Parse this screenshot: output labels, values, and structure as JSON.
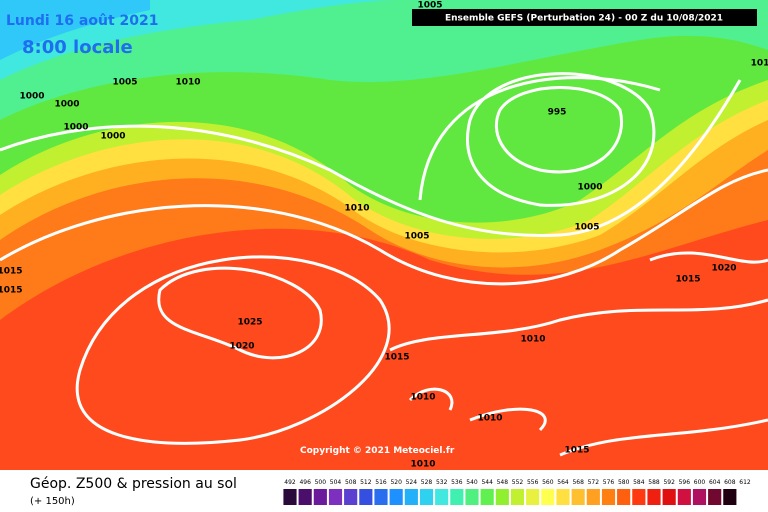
{
  "header": {
    "date": "Lundi 16 août 2021",
    "time": "8:00 locale",
    "model": "Ensemble GEFS  (Perturbation 24)  -  00 Z du 10/08/2021"
  },
  "isobar_labels": [
    "1005",
    "1005",
    "1010",
    "1000",
    "1000",
    "1000",
    "1000",
    "995",
    "1000",
    "1010",
    "1005",
    "1005",
    "1015",
    "1015",
    "1020",
    "1015",
    "1025",
    "1020",
    "1010",
    "1015",
    "1010",
    "1010",
    "1015",
    "1010",
    "101"
  ],
  "copyright": "Copyright © 2021 Meteociel.fr",
  "legend": {
    "title": "Géop. Z500 & pression au sol",
    "lead": "(+ 150h)",
    "scale": [
      492,
      496,
      500,
      504,
      508,
      512,
      516,
      520,
      524,
      528,
      532,
      536,
      540,
      544,
      548,
      552,
      556,
      560,
      564,
      568,
      572,
      576,
      580,
      584,
      588,
      592,
      596,
      600,
      604,
      608,
      612
    ],
    "colors": [
      "#2a0a3a",
      "#4b0f6b",
      "#6a1a9a",
      "#7d2fc0",
      "#5a3fd0",
      "#3550e0",
      "#2a6ef0",
      "#1e90ff",
      "#22b0f8",
      "#30d0f0",
      "#40e8e0",
      "#40f0b0",
      "#50f080",
      "#60f050",
      "#90f030",
      "#c0f030",
      "#e8f040",
      "#ffff50",
      "#ffe040",
      "#ffc030",
      "#ffa020",
      "#ff8010",
      "#ff6010",
      "#ff3a10",
      "#f02010",
      "#e01010",
      "#d01040",
      "#b01060",
      "#700830",
      "#200010"
    ]
  }
}
